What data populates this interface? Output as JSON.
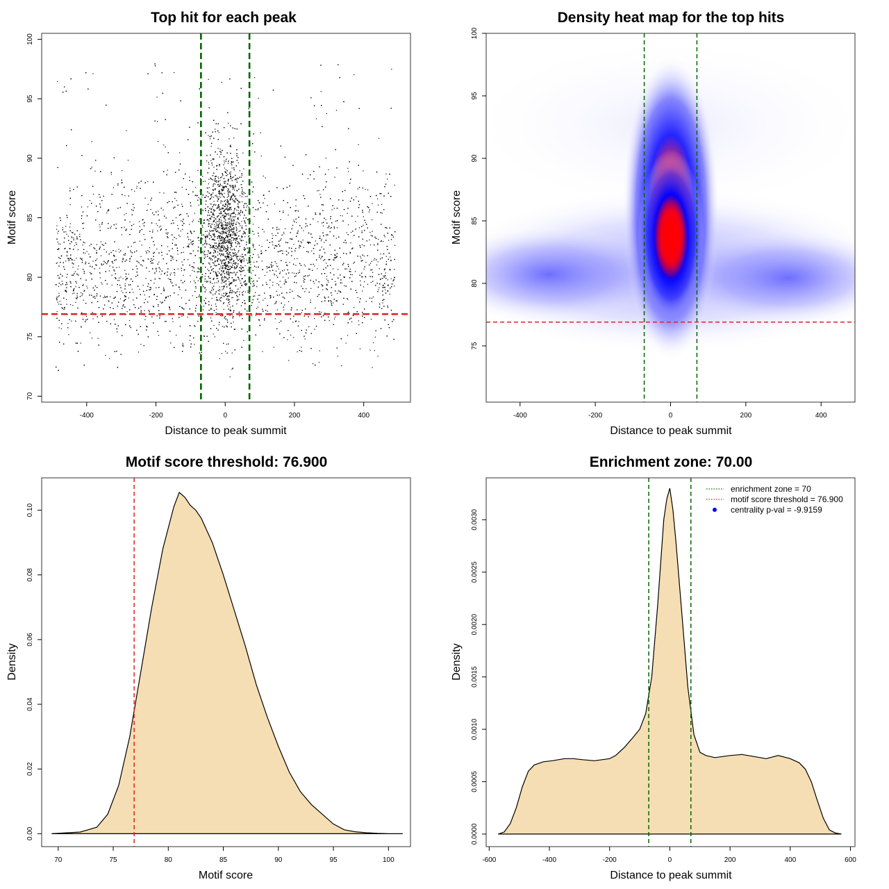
{
  "chart_data": [
    {
      "id": "scatter",
      "type": "scatter",
      "title": "Top hit for each peak",
      "xlabel": "Distance to peak summit",
      "ylabel": "Motif score",
      "xlim": [
        -530,
        535
      ],
      "ylim": [
        69.5,
        100.5
      ],
      "xticks": [
        -400,
        -200,
        0,
        200,
        400
      ],
      "yticks": [
        70,
        75,
        80,
        85,
        90,
        95,
        100
      ],
      "point_count_approx": 16000,
      "point_color": "#000000",
      "lines": [
        {
          "orientation": "vertical",
          "value": -70,
          "color": "#006400",
          "style": "dashed"
        },
        {
          "orientation": "vertical",
          "value": 70,
          "color": "#006400",
          "style": "dashed"
        },
        {
          "orientation": "horizontal",
          "value": 76.9,
          "color": "#e02020",
          "style": "dashed"
        }
      ]
    },
    {
      "id": "heatmap",
      "type": "heatmap",
      "title": "Density heat map for the top hits",
      "xlabel": "Distance to peak summit",
      "ylabel": "Motif score",
      "xlim": [
        -490,
        490
      ],
      "ylim": [
        70.5,
        100
      ],
      "xticks": [
        -400,
        -200,
        0,
        200,
        400
      ],
      "yticks": [
        75,
        80,
        85,
        90,
        95,
        100
      ],
      "colors": {
        "low": "#ffffff",
        "mid": "#0000ff",
        "high": "#ff0000"
      },
      "lines": [
        {
          "orientation": "vertical",
          "value": -70,
          "color": "#006400",
          "style": "dashed"
        },
        {
          "orientation": "vertical",
          "value": 70,
          "color": "#006400",
          "style": "dashed"
        },
        {
          "orientation": "horizontal",
          "value": 76.9,
          "color": "#e02020",
          "style": "dashed"
        }
      ]
    },
    {
      "id": "score_density",
      "type": "area",
      "title": "Motif score threshold: 76.900",
      "xlabel": "Motif score",
      "ylabel": "Density",
      "xlim": [
        68.5,
        102
      ],
      "ylim": [
        -0.004,
        0.11
      ],
      "xticks": [
        70,
        75,
        80,
        85,
        90,
        95,
        100
      ],
      "yticks": [
        0.0,
        0.02,
        0.04,
        0.06,
        0.08,
        0.1
      ],
      "ytick_labels": [
        "0.00",
        "0.02",
        "0.04",
        "0.06",
        "0.08",
        "0.10"
      ],
      "fill": "#f5deb3",
      "x": [
        69.4,
        72,
        73.5,
        74.5,
        75.5,
        76.5,
        77.5,
        78.5,
        79.5,
        80.5,
        81,
        81.5,
        82,
        82.5,
        83,
        84,
        85,
        86,
        87,
        88,
        89,
        90,
        91,
        92,
        93,
        94,
        95,
        96,
        97,
        98,
        99,
        100,
        101.3
      ],
      "y": [
        0.0,
        0.0005,
        0.002,
        0.006,
        0.015,
        0.03,
        0.05,
        0.07,
        0.088,
        0.101,
        0.1055,
        0.104,
        0.1015,
        0.1,
        0.0975,
        0.09,
        0.08,
        0.069,
        0.058,
        0.046,
        0.036,
        0.027,
        0.019,
        0.013,
        0.009,
        0.006,
        0.003,
        0.0012,
        0.0006,
        0.0003,
        0.0001,
        0.0,
        0.0
      ],
      "lines": [
        {
          "orientation": "vertical",
          "value": 76.9,
          "color": "#e02020",
          "style": "dashed"
        }
      ]
    },
    {
      "id": "distance_density",
      "type": "area",
      "title": "Enrichment zone: 70.00",
      "xlabel": "Distance to peak summit",
      "ylabel": "Density",
      "xlim": [
        -610,
        615
      ],
      "ylim": [
        -0.00012,
        0.0034
      ],
      "xticks": [
        -600,
        -400,
        -200,
        0,
        200,
        400,
        600
      ],
      "yticks": [
        0.0,
        0.0005,
        0.001,
        0.0015,
        0.002,
        0.0025,
        0.003
      ],
      "ytick_labels": [
        "0.0000",
        "0.0005",
        "0.0010",
        "0.0015",
        "0.0020",
        "0.0025",
        "0.0030"
      ],
      "fill": "#f5deb3",
      "x": [
        -570,
        -550,
        -530,
        -510,
        -490,
        -470,
        -450,
        -420,
        -390,
        -350,
        -320,
        -290,
        -250,
        -200,
        -180,
        -150,
        -120,
        -100,
        -80,
        -60,
        -40,
        -20,
        -10,
        0,
        10,
        20,
        40,
        60,
        80,
        100,
        120,
        150,
        200,
        240,
        280,
        320,
        360,
        400,
        430,
        450,
        470,
        490,
        510,
        530,
        550,
        570
      ],
      "y": [
        0.0,
        2e-05,
        0.0001,
        0.00025,
        0.00045,
        0.0006,
        0.00066,
        0.00069,
        0.0007,
        0.00072,
        0.00072,
        0.00071,
        0.0007,
        0.00072,
        0.00075,
        0.00083,
        0.00093,
        0.001,
        0.00115,
        0.0015,
        0.0022,
        0.003,
        0.0032,
        0.0033,
        0.0031,
        0.0028,
        0.0021,
        0.0014,
        0.00095,
        0.00078,
        0.00075,
        0.00073,
        0.00075,
        0.00076,
        0.00074,
        0.00072,
        0.00075,
        0.00072,
        0.00068,
        0.00062,
        0.0005,
        0.00032,
        0.00015,
        4e-05,
        1e-05,
        0.0
      ],
      "lines": [
        {
          "orientation": "vertical",
          "value": -70,
          "color": "#006400",
          "style": "dashed"
        },
        {
          "orientation": "vertical",
          "value": 70,
          "color": "#006400",
          "style": "dashed"
        }
      ],
      "legend": {
        "position": "top-right",
        "entries": [
          {
            "label": "enrichment zone = 70",
            "color": "#006400",
            "kind": "dotted-line"
          },
          {
            "label": "motif score threshold = 76.900",
            "color": "#e02020",
            "kind": "dotted-line"
          },
          {
            "label": "centrality p-val = -9.9159",
            "color": "#0000ff",
            "kind": "point"
          }
        ]
      }
    }
  ]
}
